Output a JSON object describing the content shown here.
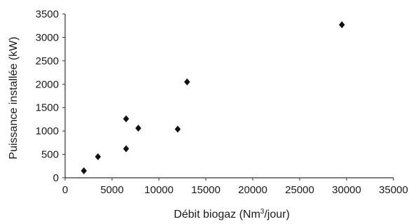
{
  "chart_data": {
    "type": "scatter",
    "xlabel_main": "Débit biogaz (Nm",
    "xlabel_sup": "3",
    "xlabel_tail": "/jour)",
    "ylabel": "Puissance installée (kW)",
    "xlim": [
      0,
      35000
    ],
    "ylim": [
      0,
      3500
    ],
    "xticks": [
      0,
      5000,
      10000,
      15000,
      20000,
      25000,
      30000,
      35000
    ],
    "yticks": [
      0,
      500,
      1000,
      1500,
      2000,
      2500,
      3000,
      3500
    ],
    "grid": false,
    "legend": "none",
    "marker": "diamond",
    "marker_color": "#111111",
    "points": [
      {
        "x": 2000,
        "y": 150
      },
      {
        "x": 3500,
        "y": 450
      },
      {
        "x": 6500,
        "y": 620
      },
      {
        "x": 6500,
        "y": 1260
      },
      {
        "x": 7800,
        "y": 1060
      },
      {
        "x": 12000,
        "y": 1040
      },
      {
        "x": 13000,
        "y": 2050
      },
      {
        "x": 29500,
        "y": 3270
      }
    ]
  }
}
